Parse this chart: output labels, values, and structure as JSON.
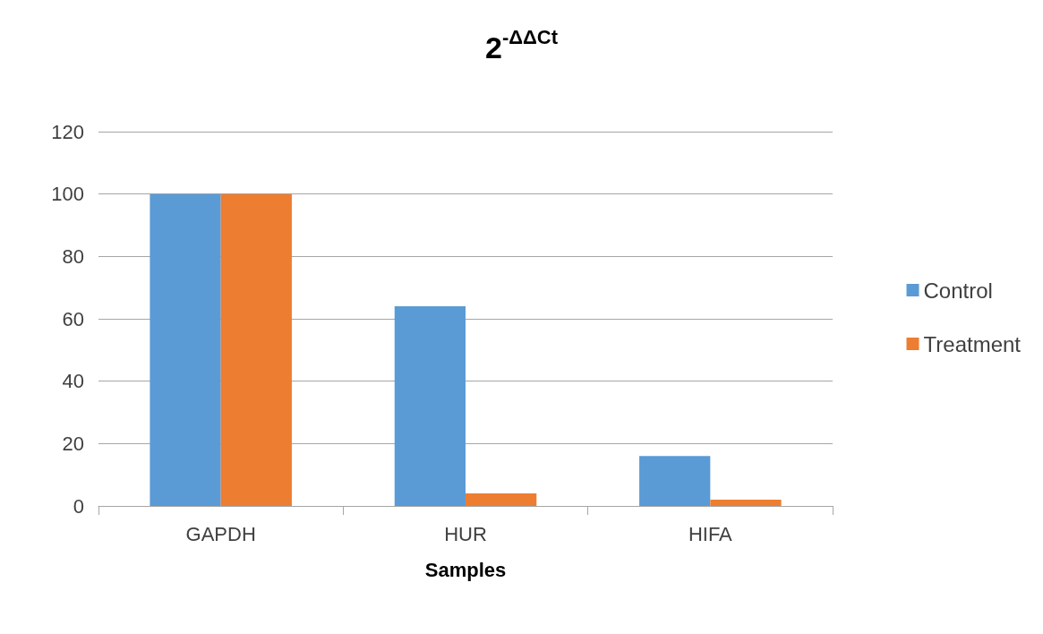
{
  "chart_data": {
    "type": "bar",
    "title": "2$^{-ΔΔCt}$",
    "xlabel": "Samples",
    "categories": [
      "GAPDH",
      "HUR",
      "HIFA"
    ],
    "series": [
      {
        "name": "Control",
        "color": "#5b9bd5",
        "values": [
          100,
          64,
          16
        ]
      },
      {
        "name": "Treatment",
        "color": "#ed7d31",
        "values": [
          100,
          4,
          2
        ]
      }
    ],
    "ylim": [
      0,
      120
    ],
    "yticks": [
      0,
      20,
      40,
      60,
      80,
      100,
      120
    ],
    "grid": "y",
    "legend": "right"
  }
}
